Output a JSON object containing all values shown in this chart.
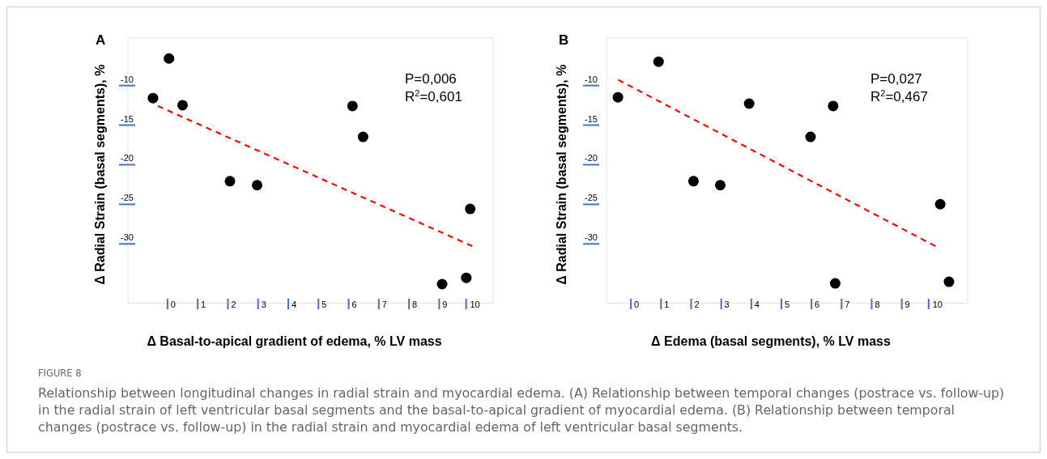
{
  "chart_data": [
    {
      "type": "scatter",
      "title": "A",
      "xlabel": "Δ Basal-to-apical gradient of edema, % LV mass",
      "ylabel": "Δ Radial Strain (basal segments), %",
      "xlim": [
        -1.5,
        10.6
      ],
      "ylim": [
        -38.3,
        -4.8
      ],
      "xticks": [
        0,
        1,
        2,
        3,
        4,
        5,
        6,
        7,
        8,
        9,
        10
      ],
      "yticks": [
        -10,
        -15,
        -20,
        -25,
        -30
      ],
      "marker": "circle",
      "series": [
        {
          "color": "#000000",
          "x": [
            -0.67,
            -0.14,
            0.31,
            1.88,
            2.78,
            5.94,
            6.29,
            9.84,
            8.91,
            9.71
          ],
          "values": [
            -12.4,
            -7.4,
            -13.3,
            -22.9,
            -23.4,
            -13.4,
            -17.3,
            -26.4,
            -35.9,
            -35.1
          ]
        },
        {
          "type": "line",
          "color": "#ff0000",
          "line_style": "dashed",
          "marker": "none",
          "x": [
            -0.51,
            9.91
          ],
          "values": [
            -13.4,
            -31.1
          ]
        }
      ],
      "annotations": [
        "P=0,006",
        "R$^{2}$=0,601",
        "FIGURE 8",
        "Relationship between longitudinal changes in radial strain and myocardial edema. (A) Relationship between temporal changes (postrace vs. follow-up) in the radial strain of left ventricular basal segments and the basal-to-apical gradient of myocardial edema. (B) Relationship between temporal changes (postrace vs. follow-up) in the radial strain and myocardial edema of left ventricular basal segments."
      ]
    },
    {
      "type": "scatter",
      "title": "B",
      "xlabel": "Δ Edema (basal segments), % LV mass",
      "ylabel": "Δ Radial Strain (basal segments), %",
      "xlim": [
        -1,
        11
      ],
      "ylim": [
        -38.3,
        -4.8
      ],
      "xticks": [
        0,
        1,
        2,
        3,
        4,
        5,
        6,
        7,
        8,
        9,
        10
      ],
      "yticks": [
        -10,
        -15,
        -20,
        -25,
        -30
      ],
      "marker": "circle",
      "series": [
        {
          "color": "#000000",
          "x": [
            -0.62,
            0.73,
            1.89,
            2.78,
            3.74,
            5.78,
            6.53,
            6.6,
            10.09,
            10.38
          ],
          "values": [
            -12.3,
            -7.8,
            -22.9,
            -23.4,
            -13.1,
            -17.3,
            -13.4,
            -35.8,
            -25.8,
            -35.6
          ]
        },
        {
          "type": "line",
          "color": "#ff0000",
          "line_style": "dashed",
          "marker": "none",
          "x": [
            -0.61,
            9.93
          ],
          "values": [
            -10.1,
            -31.1
          ]
        }
      ],
      "annotations": [
        "P=0,027",
        "R$^{2}$=0,467"
      ]
    }
  ]
}
